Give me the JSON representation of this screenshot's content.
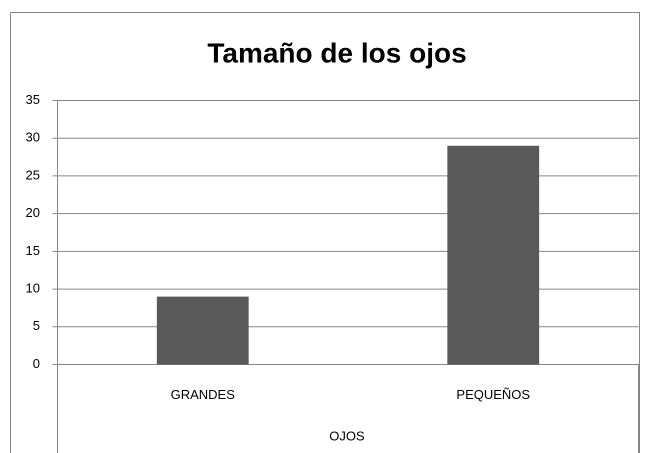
{
  "chart_data": {
    "type": "bar",
    "title": "Tamaño de los ojos",
    "x_label": "OJOS",
    "categories": [
      "GRANDES",
      "PEQUEÑOS"
    ],
    "values": [
      9,
      29
    ],
    "color": "#595959",
    "ylim": [
      0,
      35
    ],
    "yticks": [
      0,
      5,
      10,
      15,
      20,
      25,
      30,
      35
    ],
    "grid": true
  }
}
